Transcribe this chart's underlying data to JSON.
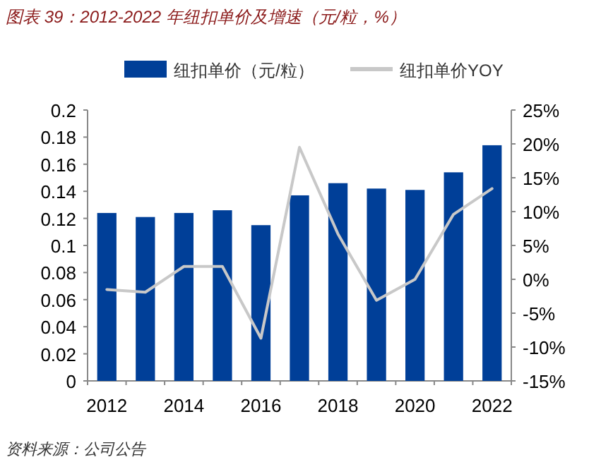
{
  "chart_data": {
    "type": "bar",
    "title": "图表 39：2012-2022 年纽扣单价及增速（元/粒，%）",
    "categories": [
      "2012",
      null,
      "2014",
      null,
      "2016",
      null,
      "2018",
      null,
      "2020",
      null,
      "2022"
    ],
    "ylim": [
      0,
      0.2
    ],
    "yticks": [
      0,
      0.02,
      0.04,
      0.06,
      0.08,
      0.1,
      0.12,
      0.14,
      0.16,
      0.18,
      0.2
    ],
    "y2lim": [
      -15,
      25
    ],
    "y2ticks": [
      {
        "value": -15,
        "label": "-15%"
      },
      {
        "value": -10,
        "label": "-10%"
      },
      {
        "value": -5,
        "label": "-5%"
      },
      {
        "value": 0,
        "label": "0%"
      },
      {
        "value": 5,
        "label": "5%"
      },
      {
        "value": 10,
        "label": "10%"
      },
      {
        "value": 15,
        "label": "15%"
      },
      {
        "value": 20,
        "label": "20%"
      },
      {
        "value": 25,
        "label": "25%"
      }
    ],
    "series": [
      {
        "name": "纽扣单价（元/粒）",
        "color": "#003f98",
        "values": [
          0.124,
          0.121,
          0.124,
          0.126,
          0.115,
          0.137,
          0.146,
          0.142,
          0.141,
          0.154,
          0.174
        ]
      },
      {
        "name": "纽扣单价YOY",
        "type": "line",
        "axis": "y2",
        "color": "#c8c8c8",
        "values": [
          -1.5,
          -1.9,
          1.9,
          1.9,
          -8.7,
          19.5,
          6.7,
          -3.1,
          0,
          9.6,
          13.4
        ]
      }
    ],
    "legend": "top",
    "annotations": [
      "资料来源：公司公告"
    ]
  }
}
